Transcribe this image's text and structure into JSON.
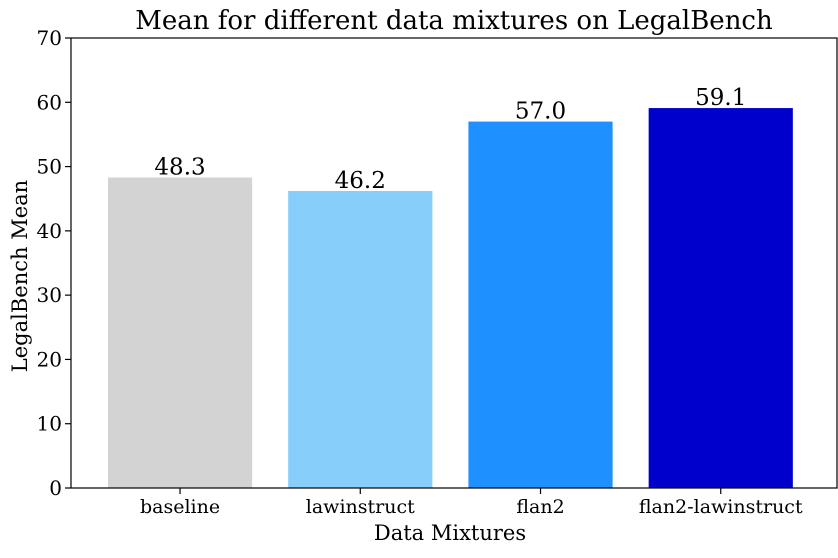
{
  "chart_data": {
    "type": "bar",
    "title": "Mean for different data mixtures on LegalBench",
    "xlabel": "Data Mixtures",
    "ylabel": "LegalBench Mean",
    "categories": [
      "baseline",
      "lawinstruct",
      "flan2",
      "flan2-lawinstruct"
    ],
    "values": [
      48.3,
      46.2,
      57.0,
      59.1
    ],
    "value_labels": [
      "48.3",
      "46.2",
      "57.0",
      "59.1"
    ],
    "colors": [
      "#d3d3d3",
      "#87cefa",
      "#1e90ff",
      "#0000cd"
    ],
    "ylim": [
      0,
      70
    ],
    "yticks": [
      0,
      10,
      20,
      30,
      40,
      50,
      60,
      70
    ],
    "grid": false,
    "legend": "none"
  }
}
